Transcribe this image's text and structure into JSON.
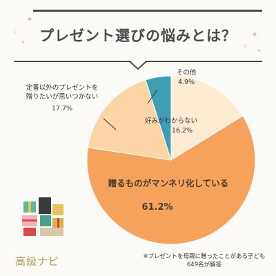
{
  "page": {
    "title": "プレゼント選びの悩みとは？",
    "note_line1": "※プレゼントを母親に贈ったことがある子ども",
    "note_line2": "649名が解答",
    "brand": "高級ナビ"
  },
  "colors": {
    "accent": "#f5a25d",
    "light": "#fdebd3",
    "mid": "#fbd5a5",
    "teal": "#3e9fb4",
    "text": "#4a4a4a"
  },
  "chart_data": {
    "type": "pie",
    "title": "プレゼント選びの悩みとは？",
    "unit": "%",
    "slices": [
      {
        "label": "好みがわからない",
        "value": 16.2,
        "color": "#fdebd3"
      },
      {
        "label": "贈るものがマンネリ化している",
        "value": 61.2,
        "color": "#f5a25d"
      },
      {
        "label": "定番以外のプレゼントを贈りたいが思いつかない",
        "value": 17.7,
        "color": "#fbd5a5"
      },
      {
        "label": "その他",
        "value": 4.9,
        "color": "#3e9fb4"
      }
    ],
    "start_angle_deg": 0,
    "direction": "clockwise"
  }
}
